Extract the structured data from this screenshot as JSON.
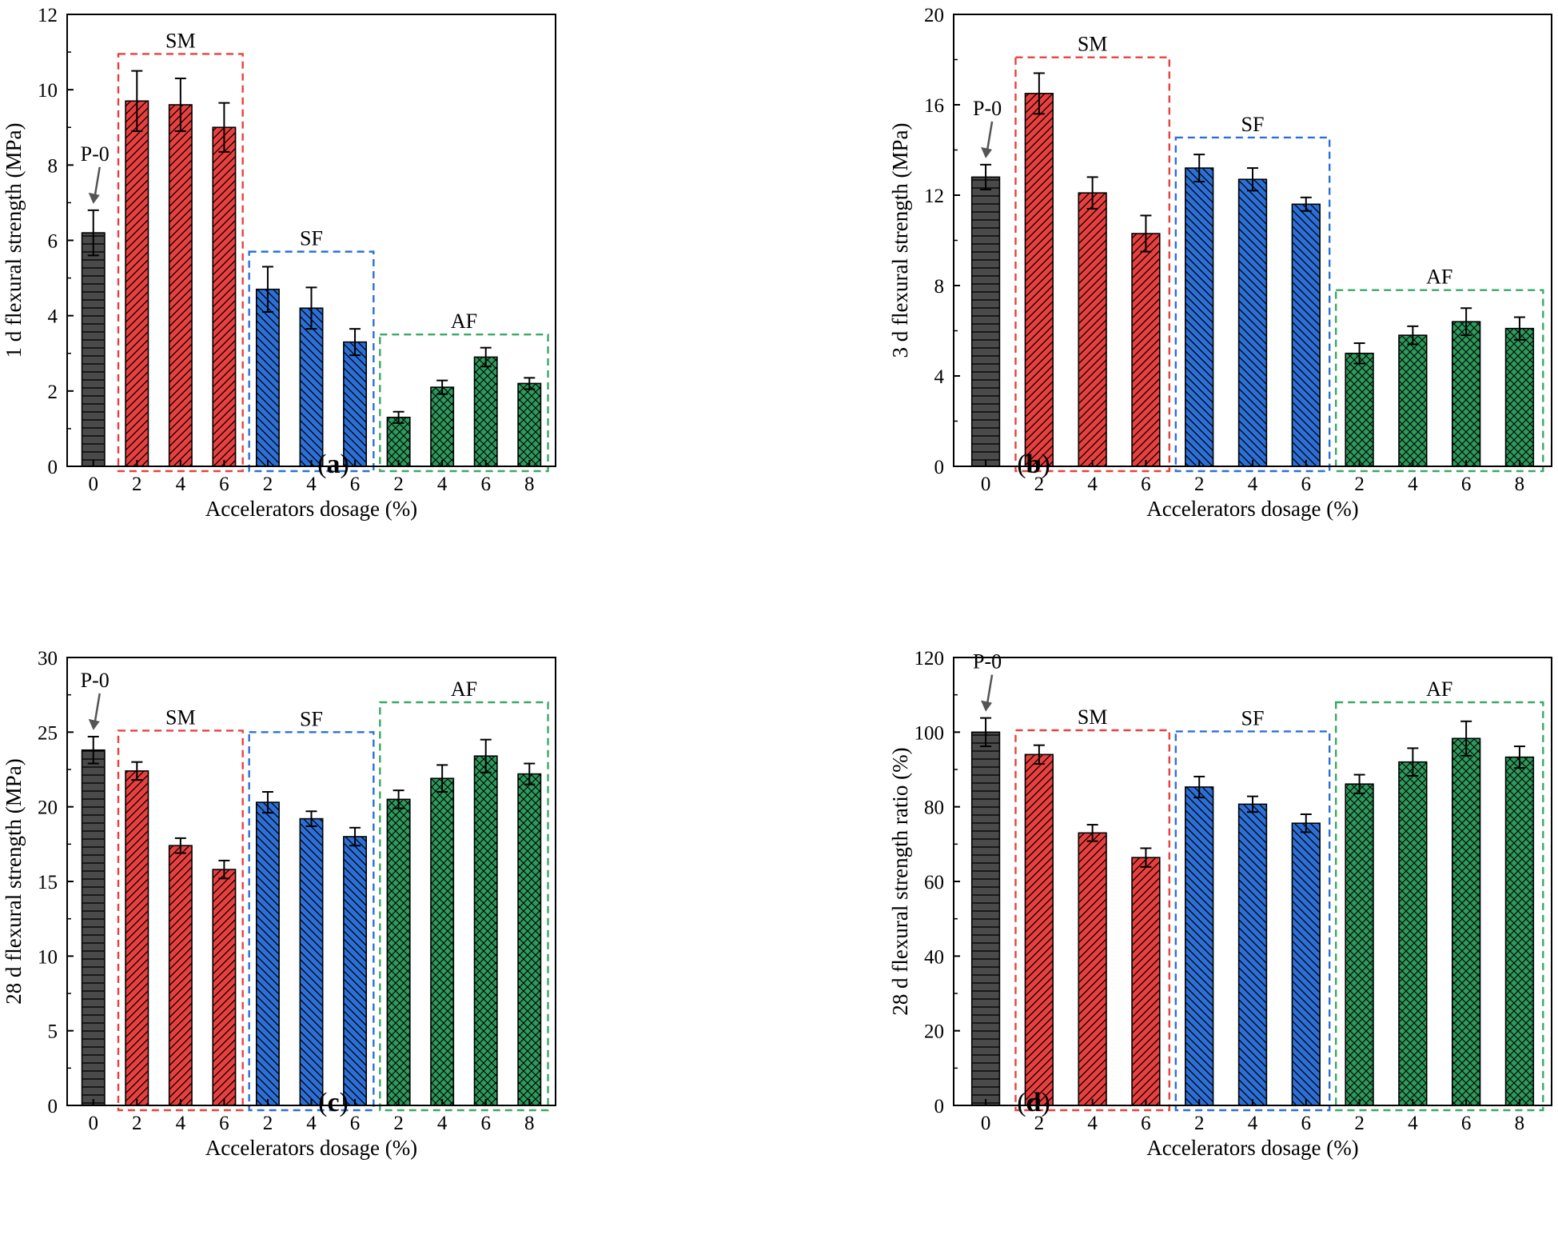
{
  "xlabel": "Accelerators dosage (%)",
  "colors": {
    "control": "#4a4a4a",
    "SM": "#e8403e",
    "SF": "#2c6fd6",
    "AF": "#2e9a5c",
    "SM_box": "#e8403e",
    "SF_box": "#2c6fd6",
    "AF_box": "#3aa865"
  },
  "chart_data": [
    {
      "id": "a",
      "caption": "a",
      "type": "bar",
      "ylabel": "1 d flexural strength (MPa)",
      "ylim": [
        0,
        12
      ],
      "yticks": [
        0,
        2,
        4,
        6,
        8,
        10,
        12
      ],
      "control_label": "P-0",
      "categories": [
        "0",
        "2",
        "4",
        "6",
        "2",
        "4",
        "6",
        "2",
        "4",
        "6",
        "8"
      ],
      "groups": [
        "P-0",
        "SM",
        "SM",
        "SM",
        "SF",
        "SF",
        "SF",
        "AF",
        "AF",
        "AF",
        "AF"
      ],
      "values": [
        6.2,
        9.7,
        9.6,
        9.0,
        4.7,
        4.2,
        3.3,
        1.3,
        2.1,
        2.9,
        2.2
      ],
      "errors": [
        0.6,
        0.8,
        0.7,
        0.65,
        0.6,
        0.55,
        0.35,
        0.15,
        0.18,
        0.25,
        0.15
      ],
      "group_labels": {
        "SM": "SM",
        "SF": "SF",
        "AF": "AF"
      },
      "group_box_tops": {
        "SM": 10.95,
        "SF": 5.7,
        "AF": 3.5
      }
    },
    {
      "id": "b",
      "caption": "b",
      "type": "bar",
      "ylabel": "3 d flexural strength (MPa)",
      "ylim": [
        0,
        20
      ],
      "yticks": [
        0,
        4,
        8,
        12,
        16,
        20
      ],
      "control_label": "P-0",
      "categories": [
        "0",
        "2",
        "4",
        "6",
        "2",
        "4",
        "6",
        "2",
        "4",
        "6",
        "8"
      ],
      "groups": [
        "P-0",
        "SM",
        "SM",
        "SM",
        "SF",
        "SF",
        "SF",
        "AF",
        "AF",
        "AF",
        "AF"
      ],
      "values": [
        12.8,
        16.5,
        12.1,
        10.3,
        13.2,
        12.7,
        11.6,
        5.0,
        5.8,
        6.4,
        6.1
      ],
      "errors": [
        0.55,
        0.9,
        0.7,
        0.8,
        0.6,
        0.5,
        0.3,
        0.45,
        0.4,
        0.6,
        0.5
      ],
      "group_labels": {
        "SM": "SM",
        "SF": "SF",
        "AF": "AF"
      },
      "group_box_tops": {
        "SM": 18.1,
        "SF": 14.55,
        "AF": 7.8
      }
    },
    {
      "id": "c",
      "caption": "c",
      "type": "bar",
      "ylabel": "28 d flexural strength (MPa)",
      "ylim": [
        0,
        30
      ],
      "yticks": [
        0,
        5,
        10,
        15,
        20,
        25,
        30
      ],
      "control_label": "P-0",
      "categories": [
        "0",
        "2",
        "4",
        "6",
        "2",
        "4",
        "6",
        "2",
        "4",
        "6",
        "8"
      ],
      "groups": [
        "P-0",
        "SM",
        "SM",
        "SM",
        "SF",
        "SF",
        "SF",
        "AF",
        "AF",
        "AF",
        "AF"
      ],
      "values": [
        23.8,
        22.4,
        17.4,
        15.8,
        20.3,
        19.2,
        18.0,
        20.5,
        21.9,
        23.4,
        22.2
      ],
      "errors": [
        0.9,
        0.6,
        0.5,
        0.6,
        0.7,
        0.5,
        0.6,
        0.6,
        0.9,
        1.1,
        0.7
      ],
      "group_labels": {
        "SM": "SM",
        "SF": "SF",
        "AF": "AF"
      },
      "group_box_tops": {
        "SM": 25.1,
        "SF": 25.0,
        "AF": 27.0
      }
    },
    {
      "id": "d",
      "caption": "d",
      "type": "bar",
      "ylabel": "28 d flexural strength ratio (%)",
      "ylim": [
        0,
        120
      ],
      "yticks": [
        0,
        20,
        40,
        60,
        80,
        100,
        120
      ],
      "control_label": "P-0",
      "categories": [
        "0",
        "2",
        "4",
        "6",
        "2",
        "4",
        "6",
        "2",
        "4",
        "6",
        "8"
      ],
      "groups": [
        "P-0",
        "SM",
        "SM",
        "SM",
        "SF",
        "SF",
        "SF",
        "AF",
        "AF",
        "AF",
        "AF"
      ],
      "values": [
        100,
        94,
        73,
        66.4,
        85.3,
        80.7,
        75.6,
        86.1,
        92,
        98.3,
        93.3
      ],
      "errors": [
        3.8,
        2.5,
        2.2,
        2.5,
        2.8,
        2.1,
        2.4,
        2.5,
        3.7,
        4.6,
        2.9
      ],
      "group_labels": {
        "SM": "SM",
        "SF": "SF",
        "AF": "AF"
      },
      "group_box_tops": {
        "SM": 100.5,
        "SF": 100.2,
        "AF": 108.0
      }
    }
  ]
}
